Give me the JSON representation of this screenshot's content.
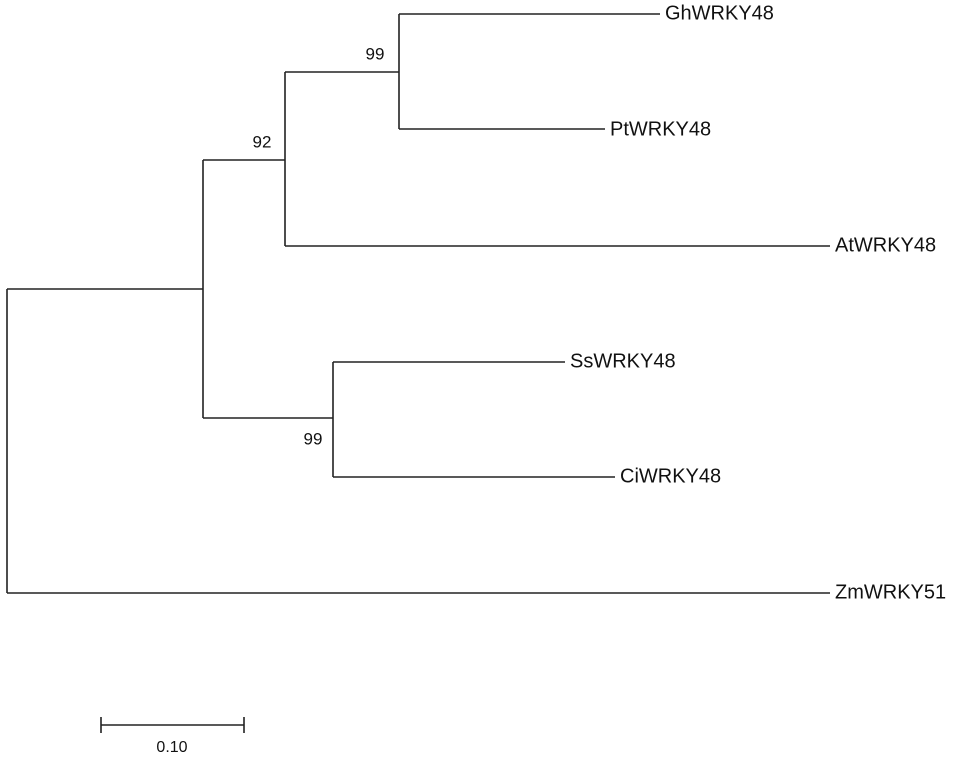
{
  "leaves": [
    "GhWRKY48",
    "PtWRKY48",
    "AtWRKY48",
    "SsWRKY48",
    "CiWRKY48",
    "ZmWRKY51"
  ],
  "bootstraps": [
    99,
    92,
    99
  ],
  "scale_bar": {
    "label": "0.10"
  }
}
